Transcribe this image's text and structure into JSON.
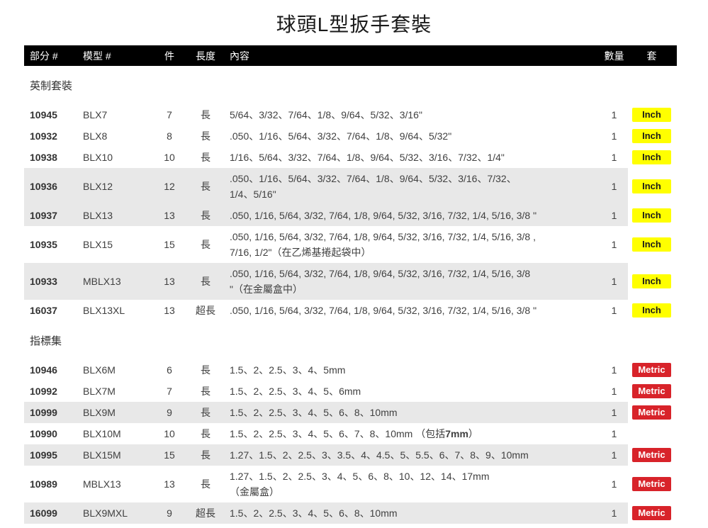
{
  "page": {
    "title": "球頭L型扳手套裝"
  },
  "table": {
    "header": {
      "part": "部分 #",
      "model": "模型 #",
      "pieces": "件",
      "length": "長度",
      "content": "內容",
      "qty": "數量",
      "set": "套",
      "bg": "#000000",
      "fg": "#ffffff"
    },
    "stripe_color": "#e8e8e8",
    "badge_styles": {
      "inch": {
        "label": "Inch",
        "bg": "#ffff00",
        "fg": "#1a1a1a"
      },
      "metric": {
        "label": "Metric",
        "bg": "#d8232a",
        "fg": "#ffffff"
      }
    },
    "sections": [
      {
        "label": "英制套裝",
        "rows": [
          {
            "part": "10945",
            "model": "BLX7",
            "pieces": "7",
            "length": "長",
            "qty": "1",
            "badge": "inch",
            "shaded": false,
            "lines": [
              [
                {
                  "t": "5/64、3/32、7/64、1/8、9/64、5/32、3/16\"",
                  "b": false
                }
              ]
            ]
          },
          {
            "part": "10932",
            "model": "BLX8",
            "pieces": "8",
            "length": "長",
            "qty": "1",
            "badge": "inch",
            "shaded": false,
            "lines": [
              [
                {
                  "t": ".050、1/16、5/64、3/32、7/64、1/8、9/64、5/32\"",
                  "b": false
                }
              ]
            ]
          },
          {
            "part": "10938",
            "model": "BLX10",
            "pieces": "10",
            "length": "長",
            "qty": "1",
            "badge": "inch",
            "shaded": false,
            "lines": [
              [
                {
                  "t": "1/16、5/64、3/32、7/64、1/8、9/64、5/32、3/16、7/32、1/4\"",
                  "b": false
                }
              ]
            ]
          },
          {
            "part": "10936",
            "model": "BLX12",
            "pieces": "12",
            "length": "長",
            "qty": "1",
            "badge": "inch",
            "shaded": true,
            "lines": [
              [
                {
                  "t": ".050、1/16、5/64、3/32、7/64、1/8、9/64、5/32、3/16、7/32、",
                  "b": false
                }
              ],
              [
                {
                  "t": "1/4、5/16\"",
                  "b": false
                }
              ]
            ]
          },
          {
            "part": "10937",
            "model": "BLX13",
            "pieces": "13",
            "length": "長",
            "qty": "1",
            "badge": "inch",
            "shaded": true,
            "lines": [
              [
                {
                  "t": ".050, 1/16, 5/64, 3/32, 7/64, 1/8, 9/64, 5/32, 3/16, 7/32, 1/4, 5/16, 3/8 \"",
                  "b": false
                }
              ]
            ]
          },
          {
            "part": "10935",
            "model": "BLX15",
            "pieces": "15",
            "length": "長",
            "qty": "1",
            "badge": "inch",
            "shaded": false,
            "lines": [
              [
                {
                  "t": ".050, 1/16, 5/64, 3/32, 7/64, 1/8, 9/64, 5/32, 3/16, 7/32, 1/4, 5/16, 3/8 ,",
                  "b": false
                }
              ],
              [
                {
                  "t": "7/16, 1/2\"（在乙烯基捲起袋中）",
                  "b": false
                }
              ]
            ]
          },
          {
            "part": "10933",
            "model": "MBLX13",
            "pieces": "13",
            "length": "長",
            "qty": "1",
            "badge": "inch",
            "shaded": true,
            "lines": [
              [
                {
                  "t": ".050, 1/16, 5/64, 3/32, 7/64, 1/8, 9/64, 5/32, 3/16, 7/32, 1/4, 5/16, 3/8",
                  "b": false
                }
              ],
              [
                {
                  "t": "\"（在金屬盒中）",
                  "b": false
                }
              ]
            ]
          },
          {
            "part": "16037",
            "model": "BLX13XL",
            "pieces": "13",
            "length": "超長",
            "qty": "1",
            "badge": "inch",
            "shaded": false,
            "lines": [
              [
                {
                  "t": ".050, 1/16, 5/64, 3/32, 7/64, 1/8, 9/64, 5/32, 3/16, 7/32, 1/4, 5/16, 3/8 \"",
                  "b": false
                }
              ]
            ]
          }
        ]
      },
      {
        "label": "指標集",
        "rows": [
          {
            "part": "10946",
            "model": "BLX6M",
            "pieces": "6",
            "length": "長",
            "qty": "1",
            "badge": "metric",
            "shaded": false,
            "lines": [
              [
                {
                  "t": "1.5、2、2.5、3、4、5mm",
                  "b": false
                }
              ]
            ]
          },
          {
            "part": "10992",
            "model": "BLX7M",
            "pieces": "7",
            "length": "長",
            "qty": "1",
            "badge": "metric",
            "shaded": false,
            "lines": [
              [
                {
                  "t": "1.5、2、2.5、3、4、5、6mm",
                  "b": false
                }
              ]
            ]
          },
          {
            "part": "10999",
            "model": "BLX9M",
            "pieces": "9",
            "length": "長",
            "qty": "1",
            "badge": "metric",
            "shaded": true,
            "lines": [
              [
                {
                  "t": "1.5、2、2.5、3、4、5、6、8、10mm",
                  "b": false
                }
              ]
            ]
          },
          {
            "part": "10990",
            "model": "BLX10M",
            "pieces": "10",
            "length": "長",
            "qty": "1",
            "badge": null,
            "shaded": false,
            "lines": [
              [
                {
                  "t": "1.5、2、2.5、3、4、5、6、7、8、10mm （包括",
                  "b": false
                },
                {
                  "t": "7mm",
                  "b": true
                },
                {
                  "t": "）",
                  "b": false
                }
              ]
            ]
          },
          {
            "part": "10995",
            "model": "BLX15M",
            "pieces": "15",
            "length": "長",
            "qty": "1",
            "badge": "metric",
            "shaded": true,
            "lines": [
              [
                {
                  "t": "1.27、1.5、2、2.5、3、3.5、4、4.5、5、5.5、6、7、8、9、10mm",
                  "b": false
                }
              ]
            ]
          },
          {
            "part": "10989",
            "model": "MBLX13",
            "pieces": "13",
            "length": "長",
            "qty": "1",
            "badge": "metric",
            "shaded": false,
            "lines": [
              [
                {
                  "t": "1.27、1.5、2、2.5、3、4、5、6、8、10、12、14、17mm",
                  "b": false
                }
              ],
              [
                {
                  "t": "（金屬盒）",
                  "b": false
                }
              ]
            ]
          },
          {
            "part": "16099",
            "model": "BLX9MXL",
            "pieces": "9",
            "length": "超長",
            "qty": "1",
            "badge": "metric",
            "shaded": true,
            "lines": [
              [
                {
                  "t": "1.5、2、2.5、3、4、5、6、8、10mm",
                  "b": false
                }
              ]
            ]
          }
        ]
      }
    ]
  }
}
